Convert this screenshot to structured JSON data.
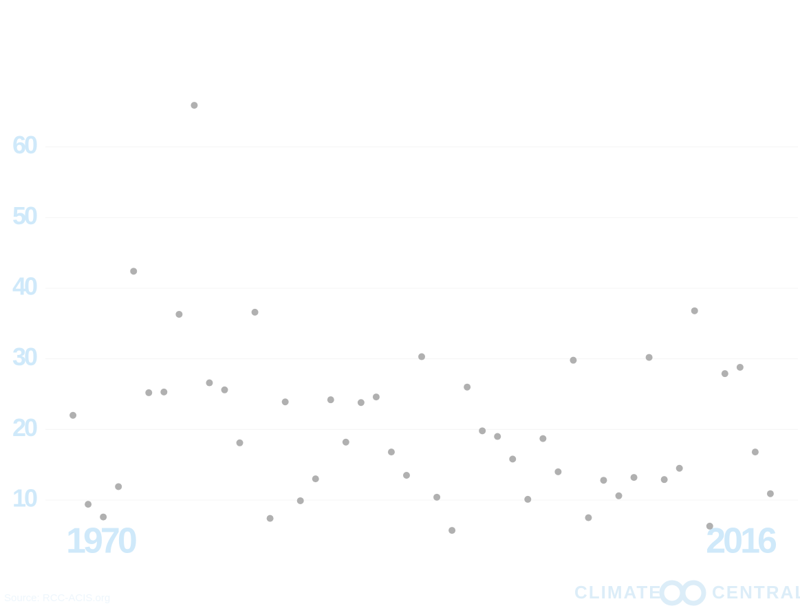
{
  "chart_data": {
    "type": "scatter",
    "x": [
      1970,
      1971,
      1972,
      1973,
      1974,
      1975,
      1976,
      1977,
      1978,
      1979,
      1980,
      1981,
      1982,
      1983,
      1984,
      1985,
      1986,
      1987,
      1988,
      1989,
      1990,
      1991,
      1992,
      1993,
      1994,
      1995,
      1996,
      1997,
      1998,
      1999,
      2000,
      2001,
      2002,
      2003,
      2004,
      2005,
      2006,
      2007,
      2008,
      2009,
      2010,
      2011,
      2012,
      2013,
      2014,
      2015,
      2016
    ],
    "values": [
      22.0,
      9.4,
      7.6,
      11.9,
      42.4,
      25.2,
      25.3,
      36.3,
      65.9,
      26.6,
      25.6,
      18.1,
      36.6,
      7.4,
      23.9,
      9.9,
      13.0,
      24.2,
      18.2,
      23.8,
      24.6,
      16.8,
      13.5,
      30.3,
      10.4,
      5.7,
      26.0,
      19.8,
      19.0,
      15.8,
      10.1,
      18.7,
      14.0,
      29.8,
      7.5,
      12.8,
      10.6,
      13.2,
      30.2,
      12.9,
      14.5,
      36.8,
      6.3,
      27.9,
      28.8,
      16.8,
      10.9
    ],
    "color": "#b0b0b0",
    "xlim": [
      1968,
      2017.5
    ],
    "xticks": [
      1970,
      2016
    ],
    "ylim": [
      0,
      70
    ],
    "yticks": [
      10,
      20,
      30,
      40,
      50,
      60
    ],
    "grid": true,
    "source": "Source: RCC-ACIS.org",
    "credits": [
      "CLIMATE",
      "CENTRAL"
    ]
  }
}
